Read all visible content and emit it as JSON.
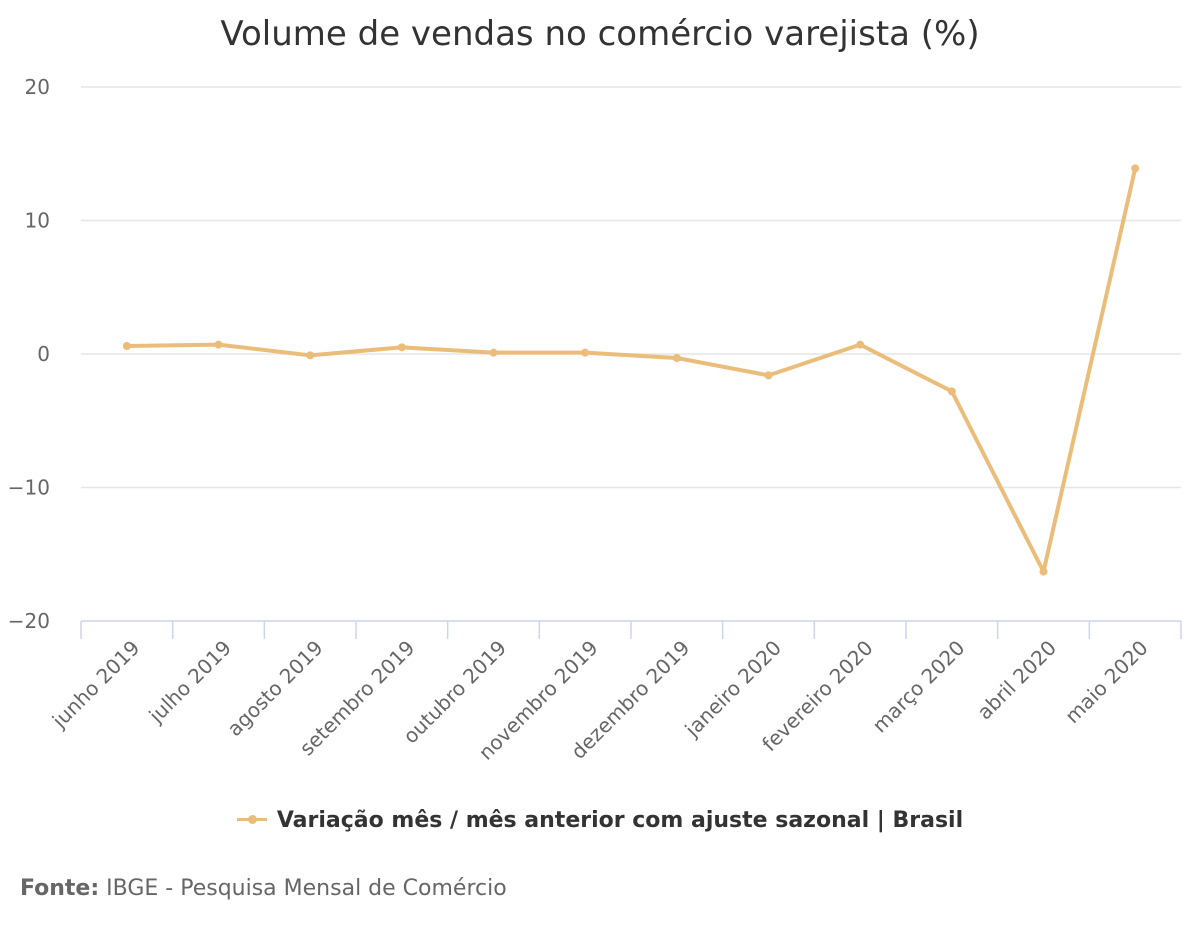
{
  "chart_data": {
    "type": "line",
    "title": "Volume de vendas no comércio varejista (%)",
    "categories": [
      "junho 2019",
      "julho 2019",
      "agosto 2019",
      "setembro 2019",
      "outubro 2019",
      "novembro 2019",
      "dezembro 2019",
      "janeiro 2020",
      "fevereiro 2020",
      "março 2020",
      "abril 2020",
      "maio 2020"
    ],
    "series": [
      {
        "name": "Variação mês / mês anterior com ajuste sazonal | Brasil",
        "color": "#ebbd7a",
        "values": [
          0.6,
          0.7,
          -0.1,
          0.5,
          0.1,
          0.1,
          -0.3,
          -1.6,
          0.7,
          -2.8,
          -16.3,
          13.9
        ]
      }
    ],
    "ylim": [
      -20,
      20
    ],
    "yticks": [
      20,
      10,
      0,
      -10,
      -20
    ],
    "grid": true,
    "legend": "bottom-center"
  },
  "source": {
    "label": "Fonte:",
    "text": "IBGE - Pesquisa Mensal de Comércio"
  }
}
